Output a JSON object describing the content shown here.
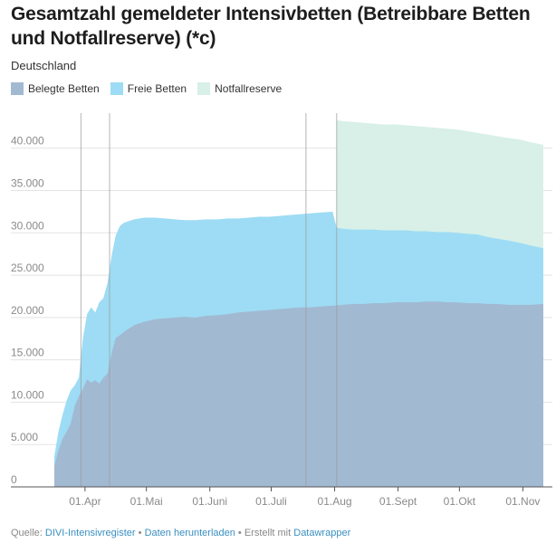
{
  "header": {
    "title": "Gesamtzahl gemeldeter Intensivbetten (Betreibbare Betten und Notfallreserve) (*c)",
    "subtitle": "Deutschland"
  },
  "legend": [
    {
      "label": "Belegte Betten",
      "color": "#a2b9d2"
    },
    {
      "label": "Freie Betten",
      "color": "#9ddcf4"
    },
    {
      "label": "Notfallreserve",
      "color": "#d8f0e7"
    }
  ],
  "footer": {
    "prefix": "Quelle:",
    "source": "DIVI-Intensivregister",
    "sep1": "•",
    "download": "Daten herunterladen",
    "sep2": "•",
    "created": "Erstellt mit",
    "tool": "Datawrapper"
  },
  "chart_data": {
    "type": "area",
    "stacked": true,
    "title": "Gesamtzahl gemeldeter Intensivbetten (Betreibbare Betten und Notfallreserve) (*c)",
    "subtitle": "Deutschland",
    "x_start": "2020-03-17",
    "x_end": "2020-11-11",
    "ylim": [
      0,
      43500
    ],
    "y_ticks": [
      {
        "value": 0,
        "label": "0"
      },
      {
        "value": 5000,
        "label": "5.000"
      },
      {
        "value": 10000,
        "label": "10.000"
      },
      {
        "value": 15000,
        "label": "15.000"
      },
      {
        "value": 20000,
        "label": "20.000"
      },
      {
        "value": 25000,
        "label": "25.000"
      },
      {
        "value": 30000,
        "label": "30.000"
      },
      {
        "value": 35000,
        "label": "35.000"
      },
      {
        "value": 40000,
        "label": "40.000"
      }
    ],
    "x_ticks": [
      {
        "date": "2020-04-01",
        "label": "01.Apr"
      },
      {
        "date": "2020-05-01",
        "label": "01.Mai"
      },
      {
        "date": "2020-06-01",
        "label": "01.Juni"
      },
      {
        "date": "2020-07-01",
        "label": "01.Juli"
      },
      {
        "date": "2020-08-01",
        "label": "01.Aug"
      },
      {
        "date": "2020-09-01",
        "label": "01.Sept"
      },
      {
        "date": "2020-10-01",
        "label": "01.Okt"
      },
      {
        "date": "2020-11-01",
        "label": "01.Nov"
      }
    ],
    "annotation_lines": [
      "2020-03-30",
      "2020-04-13",
      "2020-07-18",
      "2020-08-02"
    ],
    "series": [
      {
        "name": "Belegte Betten",
        "color": "#a2b9d2",
        "points": [
          [
            "2020-03-17",
            2500
          ],
          [
            "2020-03-19",
            4300
          ],
          [
            "2020-03-21",
            5700
          ],
          [
            "2020-03-23",
            6500
          ],
          [
            "2020-03-25",
            7500
          ],
          [
            "2020-03-27",
            9600
          ],
          [
            "2020-03-29",
            10700
          ],
          [
            "2020-03-31",
            11600
          ],
          [
            "2020-04-02",
            12700
          ],
          [
            "2020-04-04",
            12300
          ],
          [
            "2020-04-06",
            12600
          ],
          [
            "2020-04-08",
            12200
          ],
          [
            "2020-04-10",
            12900
          ],
          [
            "2020-04-12",
            13400
          ],
          [
            "2020-04-14",
            15800
          ],
          [
            "2020-04-16",
            17600
          ],
          [
            "2020-04-18",
            17900
          ],
          [
            "2020-04-20",
            18300
          ],
          [
            "2020-04-25",
            19100
          ],
          [
            "2020-04-30",
            19500
          ],
          [
            "2020-05-05",
            19800
          ],
          [
            "2020-05-10",
            19900
          ],
          [
            "2020-05-15",
            20000
          ],
          [
            "2020-05-20",
            20100
          ],
          [
            "2020-05-25",
            20000
          ],
          [
            "2020-05-30",
            20200
          ],
          [
            "2020-06-05",
            20300
          ],
          [
            "2020-06-10",
            20400
          ],
          [
            "2020-06-15",
            20600
          ],
          [
            "2020-06-20",
            20700
          ],
          [
            "2020-06-25",
            20800
          ],
          [
            "2020-06-30",
            20900
          ],
          [
            "2020-07-05",
            21000
          ],
          [
            "2020-07-10",
            21100
          ],
          [
            "2020-07-15",
            21200
          ],
          [
            "2020-07-20",
            21200
          ],
          [
            "2020-07-25",
            21300
          ],
          [
            "2020-07-31",
            21400
          ],
          [
            "2020-08-05",
            21500
          ],
          [
            "2020-08-10",
            21600
          ],
          [
            "2020-08-15",
            21600
          ],
          [
            "2020-08-20",
            21700
          ],
          [
            "2020-08-25",
            21700
          ],
          [
            "2020-08-31",
            21800
          ],
          [
            "2020-09-05",
            21800
          ],
          [
            "2020-09-10",
            21800
          ],
          [
            "2020-09-15",
            21900
          ],
          [
            "2020-09-20",
            21900
          ],
          [
            "2020-09-25",
            21800
          ],
          [
            "2020-09-30",
            21800
          ],
          [
            "2020-10-05",
            21700
          ],
          [
            "2020-10-10",
            21700
          ],
          [
            "2020-10-15",
            21600
          ],
          [
            "2020-10-20",
            21600
          ],
          [
            "2020-10-25",
            21500
          ],
          [
            "2020-10-31",
            21500
          ],
          [
            "2020-11-05",
            21500
          ],
          [
            "2020-11-11",
            21600
          ]
        ]
      },
      {
        "name": "Freie Betten",
        "color": "#9ddcf4",
        "points": [
          [
            "2020-03-17",
            3600
          ],
          [
            "2020-03-19",
            6500
          ],
          [
            "2020-03-21",
            8500
          ],
          [
            "2020-03-23",
            10200
          ],
          [
            "2020-03-25",
            11400
          ],
          [
            "2020-03-27",
            12000
          ],
          [
            "2020-03-29",
            12900
          ],
          [
            "2020-03-31",
            17600
          ],
          [
            "2020-04-02",
            20400
          ],
          [
            "2020-04-04",
            21200
          ],
          [
            "2020-04-06",
            20600
          ],
          [
            "2020-04-08",
            21800
          ],
          [
            "2020-04-10",
            22300
          ],
          [
            "2020-04-12",
            24100
          ],
          [
            "2020-04-14",
            27300
          ],
          [
            "2020-04-16",
            29700
          ],
          [
            "2020-04-18",
            30800
          ],
          [
            "2020-04-20",
            31200
          ],
          [
            "2020-04-25",
            31600
          ],
          [
            "2020-04-30",
            31800
          ],
          [
            "2020-05-05",
            31800
          ],
          [
            "2020-05-10",
            31700
          ],
          [
            "2020-05-15",
            31600
          ],
          [
            "2020-05-20",
            31500
          ],
          [
            "2020-05-25",
            31500
          ],
          [
            "2020-05-30",
            31600
          ],
          [
            "2020-06-05",
            31600
          ],
          [
            "2020-06-10",
            31700
          ],
          [
            "2020-06-15",
            31700
          ],
          [
            "2020-06-20",
            31800
          ],
          [
            "2020-06-25",
            31900
          ],
          [
            "2020-06-30",
            31900
          ],
          [
            "2020-07-05",
            32000
          ],
          [
            "2020-07-10",
            32100
          ],
          [
            "2020-07-15",
            32200
          ],
          [
            "2020-07-20",
            32300
          ],
          [
            "2020-07-25",
            32400
          ],
          [
            "2020-07-31",
            32500
          ],
          [
            "2020-08-02",
            30600
          ],
          [
            "2020-08-05",
            30500
          ],
          [
            "2020-08-10",
            30400
          ],
          [
            "2020-08-15",
            30400
          ],
          [
            "2020-08-20",
            30400
          ],
          [
            "2020-08-25",
            30300
          ],
          [
            "2020-08-31",
            30300
          ],
          [
            "2020-09-05",
            30300
          ],
          [
            "2020-09-10",
            30200
          ],
          [
            "2020-09-15",
            30200
          ],
          [
            "2020-09-20",
            30100
          ],
          [
            "2020-09-25",
            30100
          ],
          [
            "2020-09-30",
            30000
          ],
          [
            "2020-10-05",
            29900
          ],
          [
            "2020-10-10",
            29800
          ],
          [
            "2020-10-15",
            29500
          ],
          [
            "2020-10-20",
            29300
          ],
          [
            "2020-10-25",
            29100
          ],
          [
            "2020-10-31",
            28800
          ],
          [
            "2020-11-05",
            28500
          ],
          [
            "2020-11-11",
            28200
          ]
        ]
      },
      {
        "name": "Notfallreserve",
        "color": "#d8f0e7",
        "points": [
          [
            "2020-08-02",
            43300
          ],
          [
            "2020-08-05",
            43200
          ],
          [
            "2020-08-10",
            43100
          ],
          [
            "2020-08-15",
            43000
          ],
          [
            "2020-08-20",
            42900
          ],
          [
            "2020-08-25",
            42800
          ],
          [
            "2020-08-31",
            42800
          ],
          [
            "2020-09-05",
            42700
          ],
          [
            "2020-09-10",
            42600
          ],
          [
            "2020-09-15",
            42500
          ],
          [
            "2020-09-20",
            42400
          ],
          [
            "2020-09-25",
            42300
          ],
          [
            "2020-09-30",
            42200
          ],
          [
            "2020-10-05",
            42000
          ],
          [
            "2020-10-10",
            41800
          ],
          [
            "2020-10-15",
            41600
          ],
          [
            "2020-10-20",
            41400
          ],
          [
            "2020-10-25",
            41200
          ],
          [
            "2020-10-31",
            41000
          ],
          [
            "2020-11-05",
            40700
          ],
          [
            "2020-11-11",
            40400
          ]
        ]
      }
    ]
  }
}
